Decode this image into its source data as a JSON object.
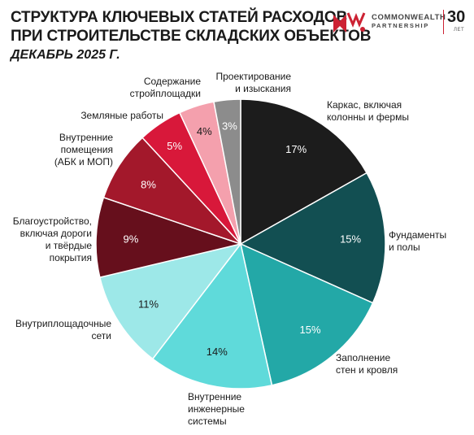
{
  "header": {
    "title_line1": "СТРУКТУРА КЛЮЧЕВЫХ СТАТЕЙ РАСХОДОВ",
    "title_line2": "ПРИ СТРОИТЕЛЬСТВЕ СКЛАДСКИХ ОБЪЕКТОВ",
    "subtitle": "ДЕКАБРЬ 2025 Г."
  },
  "logo": {
    "mark": "CMWP",
    "brand_line1": "COMMONWEALTH",
    "brand_line2": "PARTNERSHIP",
    "years": "30",
    "years_sub": "ЛЕТ",
    "accent_color": "#cc2233"
  },
  "chart_data": {
    "type": "pie",
    "start_angle_deg": 0,
    "direction": "clockwise",
    "slices": [
      {
        "name": "Каркас, включая колонны и фермы",
        "label_lines": [
          "Каркас, включая",
          "колонны и фермы"
        ],
        "value": 17,
        "label": "17%",
        "color": "#1c1c1c",
        "pct_color": "#ffffff"
      },
      {
        "name": "Фундаменты и полы",
        "label_lines": [
          "Фундаменты",
          "и полы"
        ],
        "value": 15,
        "label": "15%",
        "color": "#124f52",
        "pct_color": "#ffffff"
      },
      {
        "name": "Заполнение стен и кровля",
        "label_lines": [
          "Заполнение",
          "стен и кровля"
        ],
        "value": 15,
        "label": "15%",
        "color": "#23a8a7",
        "pct_color": "#ffffff"
      },
      {
        "name": "Внутренние инженерные системы",
        "label_lines": [
          "Внутренние",
          "инженерные",
          "системы"
        ],
        "value": 14,
        "label": "14%",
        "color": "#5fdada",
        "pct_color": "#1a1a1a"
      },
      {
        "name": "Внутриплощадочные сети",
        "label_lines": [
          "Внутриплощадочные",
          "сети"
        ],
        "value": 11,
        "label": "11%",
        "color": "#9de8e8",
        "pct_color": "#1a1a1a"
      },
      {
        "name": "Благоустройство, включая дороги и твёрдые покрытия",
        "label_lines": [
          "Благоустройство,",
          "включая дороги",
          "и твёрдые",
          "покрытия"
        ],
        "value": 9,
        "label": "9%",
        "color": "#660f1c",
        "pct_color": "#ffffff"
      },
      {
        "name": "Внутренние помещения (АБК и МОП)",
        "label_lines": [
          "Внутренние",
          "помещения",
          "(АБК и МОП)"
        ],
        "value": 8,
        "label": "8%",
        "color": "#a3182b",
        "pct_color": "#ffffff"
      },
      {
        "name": "Земляные работы",
        "label_lines": [
          "Земляные работы"
        ],
        "value": 5,
        "label": "5%",
        "color": "#d8183a",
        "pct_color": "#ffffff"
      },
      {
        "name": "Содержание стройплощадки",
        "label_lines": [
          "Содержание",
          "стройплощадки"
        ],
        "value": 4,
        "label": "4%",
        "color": "#f4a0ad",
        "pct_color": "#1a1a1a"
      },
      {
        "name": "Проектирование и изыскания",
        "label_lines": [
          "Проектирование",
          "и изыскания"
        ],
        "value": 3,
        "label": "3%",
        "color": "#8c8c8c",
        "pct_color": "#ffffff"
      }
    ]
  }
}
